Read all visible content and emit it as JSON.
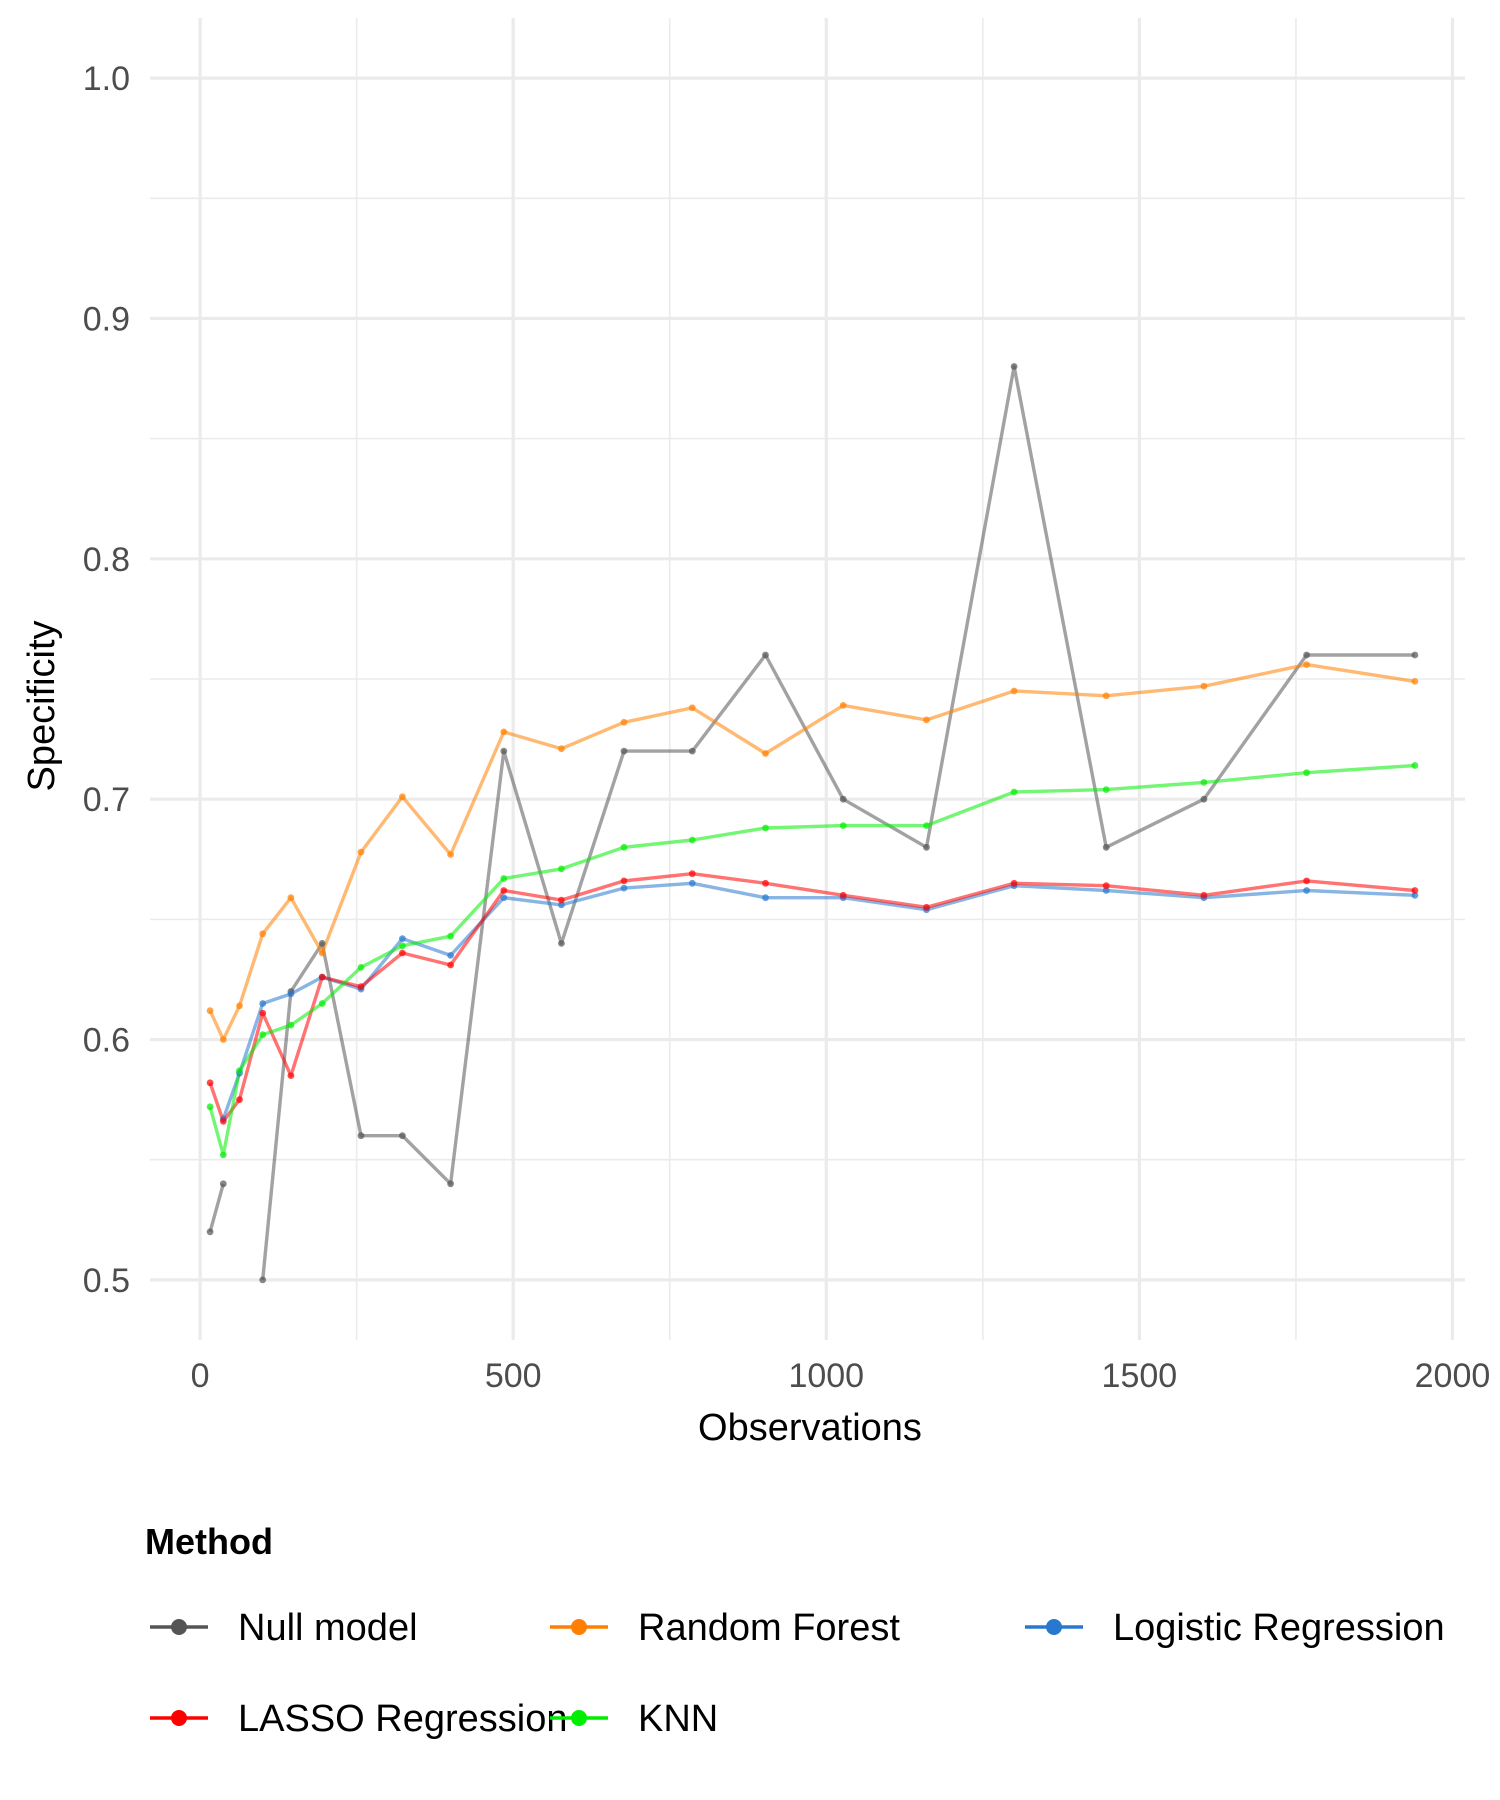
{
  "chart_data": {
    "type": "line",
    "title": "",
    "xlabel": "Observations",
    "ylabel": "Specificity",
    "xlim": [
      -80,
      2020
    ],
    "ylim": [
      0.475,
      1.025
    ],
    "x_ticks": [
      0,
      500,
      1000,
      1500,
      2000
    ],
    "x_tick_labels": [
      "0",
      "500",
      "1000",
      "1500",
      "2000"
    ],
    "y_ticks": [
      0.5,
      0.6,
      0.7,
      0.8,
      0.9,
      1.0
    ],
    "y_tick_labels": [
      "0.5",
      "0.6",
      "0.7",
      "0.8",
      "0.9",
      "1.0"
    ],
    "grid": true,
    "legend": {
      "title": "Method",
      "position": "bottom"
    },
    "series": [
      {
        "name": "Null model",
        "color": "#555555",
        "points": [
          [
            16,
            0.52
          ],
          [
            37,
            0.54
          ],
          [
            null,
            null
          ],
          [
            100,
            0.5
          ],
          [
            145,
            0.62
          ],
          [
            195,
            0.64
          ],
          [
            257,
            0.56
          ],
          [
            323,
            0.56
          ],
          [
            400,
            0.54
          ],
          [
            485,
            0.72
          ],
          [
            577,
            0.64
          ],
          [
            677,
            0.72
          ],
          [
            786,
            0.72
          ],
          [
            903,
            0.76
          ],
          [
            1027,
            0.7
          ],
          [
            1160,
            0.68
          ],
          [
            1300,
            0.88
          ],
          [
            1447,
            0.68
          ],
          [
            1603,
            0.7
          ],
          [
            1767,
            0.76
          ],
          [
            1940,
            0.76
          ]
        ]
      },
      {
        "name": "Random Forest",
        "color": "#FF8000",
        "points": [
          [
            16,
            0.612
          ],
          [
            37,
            0.6
          ],
          [
            63,
            0.614
          ],
          [
            100,
            0.644
          ],
          [
            145,
            0.659
          ],
          [
            195,
            0.636
          ],
          [
            257,
            0.678
          ],
          [
            323,
            0.701
          ],
          [
            400,
            0.677
          ],
          [
            485,
            0.728
          ],
          [
            577,
            0.721
          ],
          [
            677,
            0.732
          ],
          [
            786,
            0.738
          ],
          [
            903,
            0.719
          ],
          [
            1027,
            0.739
          ],
          [
            1160,
            0.733
          ],
          [
            1300,
            0.745
          ],
          [
            1447,
            0.743
          ],
          [
            1603,
            0.747
          ],
          [
            1767,
            0.756
          ],
          [
            1940,
            0.749
          ]
        ]
      },
      {
        "name": "Logistic Regression",
        "color": "#2878D0",
        "points": [
          [
            37,
            0.567
          ],
          [
            63,
            0.586
          ],
          [
            100,
            0.615
          ],
          [
            145,
            0.619
          ],
          [
            195,
            0.626
          ],
          [
            257,
            0.621
          ],
          [
            323,
            0.642
          ],
          [
            400,
            0.635
          ],
          [
            485,
            0.659
          ],
          [
            577,
            0.656
          ],
          [
            677,
            0.663
          ],
          [
            786,
            0.665
          ],
          [
            903,
            0.659
          ],
          [
            1027,
            0.659
          ],
          [
            1160,
            0.654
          ],
          [
            1300,
            0.664
          ],
          [
            1447,
            0.662
          ],
          [
            1603,
            0.659
          ],
          [
            1767,
            0.662
          ],
          [
            1940,
            0.66
          ]
        ]
      },
      {
        "name": "LASSO Regression",
        "color": "#FF0000",
        "points": [
          [
            16,
            0.582
          ],
          [
            37,
            0.566
          ],
          [
            63,
            0.575
          ],
          [
            100,
            0.611
          ],
          [
            145,
            0.585
          ],
          [
            195,
            0.626
          ],
          [
            257,
            0.622
          ],
          [
            323,
            0.636
          ],
          [
            400,
            0.631
          ],
          [
            485,
            0.662
          ],
          [
            577,
            0.658
          ],
          [
            677,
            0.666
          ],
          [
            786,
            0.669
          ],
          [
            903,
            0.665
          ],
          [
            1027,
            0.66
          ],
          [
            1160,
            0.655
          ],
          [
            1300,
            0.665
          ],
          [
            1447,
            0.664
          ],
          [
            1603,
            0.66
          ],
          [
            1767,
            0.666
          ],
          [
            1940,
            0.662
          ]
        ]
      },
      {
        "name": "KNN",
        "color": "#00EE00",
        "points": [
          [
            16,
            0.572
          ],
          [
            37,
            0.552
          ],
          [
            63,
            0.587
          ],
          [
            100,
            0.602
          ],
          [
            145,
            0.606
          ],
          [
            195,
            0.615
          ],
          [
            257,
            0.63
          ],
          [
            323,
            0.639
          ],
          [
            400,
            0.643
          ],
          [
            485,
            0.667
          ],
          [
            577,
            0.671
          ],
          [
            677,
            0.68
          ],
          [
            786,
            0.683
          ],
          [
            903,
            0.688
          ],
          [
            1027,
            0.689
          ],
          [
            1160,
            0.689
          ],
          [
            1300,
            0.703
          ],
          [
            1447,
            0.704
          ],
          [
            1603,
            0.707
          ],
          [
            1767,
            0.711
          ],
          [
            1940,
            0.714
          ]
        ]
      }
    ]
  }
}
